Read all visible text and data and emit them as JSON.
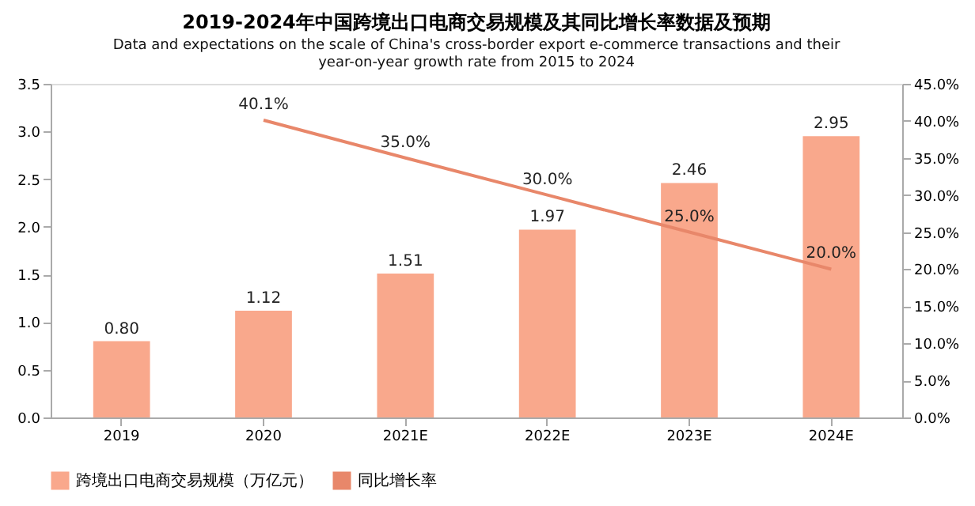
{
  "chart_data": {
    "type": "bar",
    "title": "2019-2024年中国跨境出口电商交易规模及其同比增长率数据及预期",
    "subtitle": "Data and expectations on the scale of China's cross-border export e-commerce transactions and their year-on-year growth rate from 2015 to 2024",
    "categories": [
      "2019",
      "2020",
      "2021E",
      "2022E",
      "2023E",
      "2024E"
    ],
    "series": [
      {
        "name": "跨境出口电商交易规模（万亿元）",
        "color": "#f9a88c",
        "values": [
          0.8,
          1.12,
          1.51,
          1.97,
          2.46,
          2.95
        ],
        "value_labels": [
          "0.80",
          "1.12",
          "1.51",
          "1.97",
          "2.46",
          "2.95"
        ]
      },
      {
        "name": "同比增长率",
        "type": "line",
        "axis": "y2",
        "color": "#e8876a",
        "values": [
          null,
          40.1,
          35.0,
          30.0,
          25.0,
          20.0
        ],
        "value_labels": [
          null,
          "40.1%",
          "35.0%",
          "30.0%",
          "25.0%",
          "20.0%"
        ]
      }
    ],
    "ylim": [
      0,
      3.5
    ],
    "yticks": [
      {
        "value": 0,
        "label": "0.0"
      },
      {
        "value": 0.5,
        "label": "0.5"
      },
      {
        "value": 1,
        "label": "1.0"
      },
      {
        "value": 1.5,
        "label": "1.5"
      },
      {
        "value": 2,
        "label": "2.0"
      },
      {
        "value": 2.5,
        "label": "2.5"
      },
      {
        "value": 3,
        "label": "3.0"
      },
      {
        "value": 3.5,
        "label": "3.5"
      }
    ],
    "y2lim": [
      0,
      45
    ],
    "y2ticks": [
      {
        "value": 0,
        "label": "0.0%"
      },
      {
        "value": 5,
        "label": "5.0%"
      },
      {
        "value": 10,
        "label": "10.0%"
      },
      {
        "value": 15,
        "label": "15.0%"
      },
      {
        "value": 20,
        "label": "20.0%"
      },
      {
        "value": 25,
        "label": "25.0%"
      },
      {
        "value": 30,
        "label": "30.0%"
      },
      {
        "value": 35,
        "label": "35.0%"
      },
      {
        "value": 40,
        "label": "40.0%"
      },
      {
        "value": 45,
        "label": "45.0%"
      }
    ],
    "grid": false,
    "legend": "bottom",
    "marker": "none",
    "line_style": "solid"
  }
}
